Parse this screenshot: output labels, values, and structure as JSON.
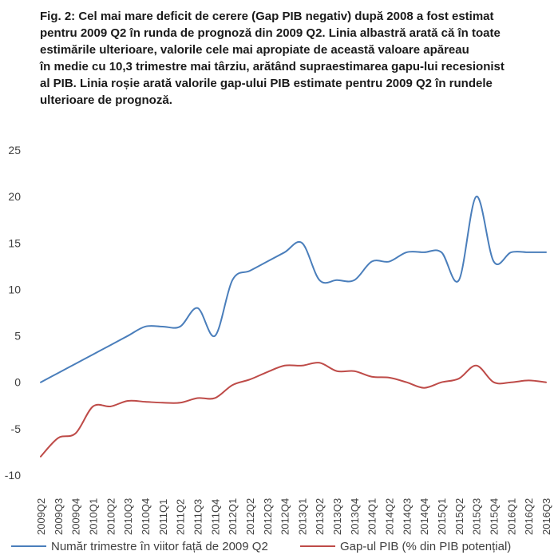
{
  "caption": [
    "Fig. 2: Cel mai mare deficit de cerere (Gap PIB negativ) după 2008 a fost estimat",
    "pentru 2009 Q2 în runda de prognoză din 2009 Q2. Linia albastră arată că în toate",
    "estimările ulterioare, valorile cele mai apropiate de această valoare apăreau",
    "în medie cu 10,3 trimestre mai târziu, arătând supraestimarea gapu-lui recesionist",
    "al PIB. Linia roșie arată valorile gap-ului PIB estimate pentru 2009 Q2 în rundele",
    "ulterioare de prognoză."
  ],
  "chart_data": {
    "type": "line",
    "categories": [
      "2009Q2",
      "2009Q3",
      "2009Q4",
      "2010Q1",
      "2010Q2",
      "2010Q3",
      "2010Q4",
      "2011Q1",
      "2011Q2",
      "2011Q3",
      "2011Q4",
      "2012Q1",
      "2012Q2",
      "2012Q3",
      "2012Q4",
      "2013Q1",
      "2013Q2",
      "2013Q3",
      "2013Q4",
      "2014Q1",
      "2014Q2",
      "2014Q3",
      "2014Q4",
      "2015Q1",
      "2015Q2",
      "2015Q3",
      "2015Q4",
      "2016Q1",
      "2016Q2",
      "2016Q3"
    ],
    "ylim": [
      -10,
      25
    ],
    "yticks": [
      25,
      20,
      15,
      10,
      5,
      0,
      -5,
      -10
    ],
    "ytick_labels": [
      "25",
      "20",
      "15",
      "10",
      "5",
      "0",
      "-5",
      "-10"
    ],
    "grid": false,
    "legend_position": "bottom",
    "series": [
      {
        "name": "Număr trimestre în viitor față de 2009 Q2",
        "color": "#4a7ebb",
        "values": [
          0,
          1,
          2,
          3,
          4,
          5,
          6,
          6,
          6,
          8,
          5,
          11,
          12,
          13,
          14,
          15,
          11,
          11,
          11,
          13,
          13,
          14,
          14,
          14,
          11,
          20,
          13,
          14,
          14,
          14
        ]
      },
      {
        "name": "Gap-ul PIB (% din PIB potențial)",
        "color": "#be4b48",
        "values": [
          -8,
          -6,
          -5.5,
          -2.6,
          -2.6,
          -2.0,
          -2.1,
          -2.2,
          -2.2,
          -1.7,
          -1.7,
          -0.3,
          0.3,
          1.1,
          1.8,
          1.8,
          2.1,
          1.2,
          1.2,
          0.6,
          0.5,
          0.0,
          -0.6,
          0.0,
          0.4,
          1.8,
          0.0,
          0.0,
          0.2,
          0.0
        ]
      }
    ]
  }
}
